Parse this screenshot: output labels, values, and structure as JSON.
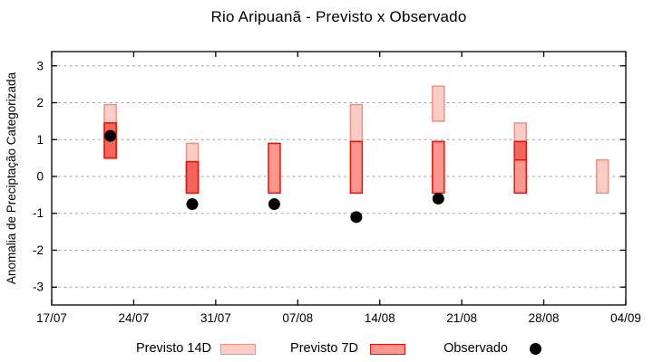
{
  "chart_data": {
    "type": "bar",
    "subtype": "floating-range-bars-with-scatter-overlay",
    "title": "Rio Aripuanã - Previsto x Observado",
    "xlabel": "",
    "ylabel": "Anomalia de Preciptação Categorizada",
    "x_ticks": [
      "17/07",
      "24/07",
      "31/07",
      "07/08",
      "14/08",
      "21/08",
      "28/08",
      "04/09"
    ],
    "y_ticks": [
      "3",
      "2",
      "1",
      "0",
      "-1",
      "-2",
      "-3"
    ],
    "ylim": [
      -3.5,
      3.5
    ],
    "grid": "horizontal-dotted",
    "grid_color": "#999999",
    "legend_position": "bottom",
    "overlap_fill": "#f3645c",
    "series": [
      {
        "name": "Previsto 14D",
        "kind": "range",
        "fill": "#fbcdc6",
        "stroke": "#f0907f",
        "points": [
          {
            "date": "22/07",
            "lo": 0.5,
            "hi": 1.95
          },
          {
            "date": "29/07",
            "lo": -0.45,
            "hi": 0.9
          },
          {
            "date": "12/08",
            "lo": 0.95,
            "hi": 1.95
          },
          {
            "date": "19/08",
            "lo": 1.5,
            "hi": 2.45
          },
          {
            "date": "26/08",
            "lo": 0.45,
            "hi": 1.45
          },
          {
            "date": "02/09",
            "lo": -0.45,
            "hi": 0.45
          }
        ]
      },
      {
        "name": "Previsto 7D",
        "kind": "range",
        "fill": "#fb968f",
        "stroke": "#ee1106",
        "points": [
          {
            "date": "22/07",
            "lo": 0.5,
            "hi": 1.45
          },
          {
            "date": "29/07",
            "lo": -0.45,
            "hi": 0.4
          },
          {
            "date": "05/08",
            "lo": -0.45,
            "hi": 0.9
          },
          {
            "date": "12/08",
            "lo": -0.45,
            "hi": 0.95
          },
          {
            "date": "19/08",
            "lo": -0.45,
            "hi": 0.95
          },
          {
            "date": "26/08",
            "lo": -0.45,
            "hi": 0.95
          }
        ]
      },
      {
        "name": "Observado",
        "kind": "scatter",
        "fill": "#000000",
        "points": [
          {
            "date": "22/07",
            "value": 1.1
          },
          {
            "date": "29/07",
            "value": -0.75
          },
          {
            "date": "05/08",
            "value": -0.75
          },
          {
            "date": "12/08",
            "value": -1.1
          },
          {
            "date": "19/08",
            "value": -0.6
          }
        ]
      }
    ]
  }
}
